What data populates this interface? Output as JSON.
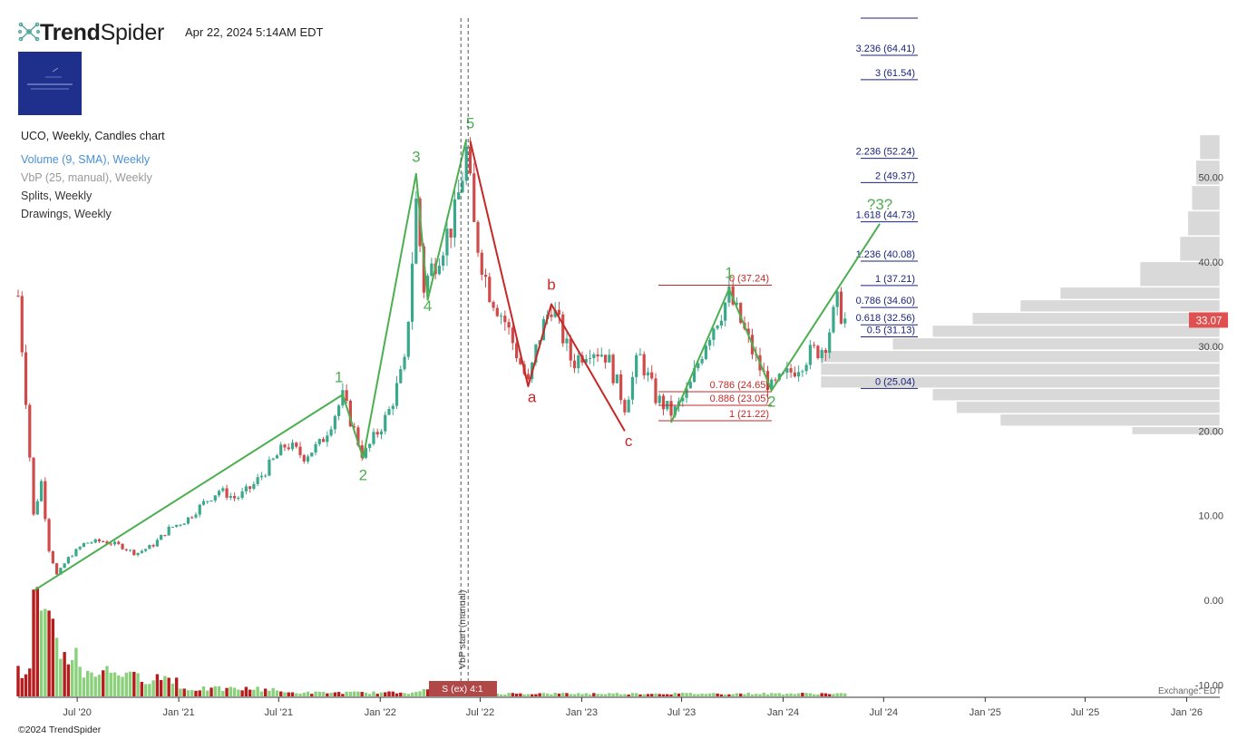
{
  "header": {
    "brand_bold": "Trend",
    "brand_light": "Spider",
    "timestamp": "Apr 22, 2024 5:14AM EDT",
    "copyright": "©2024 TrendSpider",
    "exchange": "Exchange: EDT"
  },
  "legend": {
    "main": "UCO, Weekly, Candles chart",
    "volume": "Volume (9, SMA), Weekly",
    "vbp": "VbP (25, manual), Weekly",
    "splits": "Splits, Weekly",
    "drawings": "Drawings, Weekly"
  },
  "colors": {
    "up": "#3aa88a",
    "down": "#d04a4a",
    "wave_green": "#4caf50",
    "wave_red": "#c62828",
    "vol_up": "#8bd17c",
    "vol_down": "#b71c1c",
    "price_tag": "#e05050",
    "profile": "#d9d9d9"
  },
  "chart_data": {
    "type": "candlestick",
    "ticker": "UCO",
    "timeframe": "Weekly",
    "ylim": [
      -10,
      58
    ],
    "y_ticks": [
      0,
      10,
      20,
      30,
      40,
      50
    ],
    "y_tick_labels": [
      "0.00",
      "10.00",
      "20.00",
      "30.00",
      "40.00",
      "50.00"
    ],
    "y_bottom_label": "-10.00",
    "x_start": "2020-03-16",
    "x_end": "2026-03-02",
    "x_ticks": [
      {
        "date": "2020-07-01",
        "label": "Jul '20"
      },
      {
        "date": "2021-01-01",
        "label": "Jan '21"
      },
      {
        "date": "2021-07-01",
        "label": "Jul '21"
      },
      {
        "date": "2022-01-01",
        "label": "Jan '22"
      },
      {
        "date": "2022-07-01",
        "label": "Jul '22"
      },
      {
        "date": "2023-01-01",
        "label": "Jan '23"
      },
      {
        "date": "2023-07-01",
        "label": "Jul '23"
      },
      {
        "date": "2024-01-01",
        "label": "Jan '24"
      },
      {
        "date": "2024-07-01",
        "label": "Jul '24"
      },
      {
        "date": "2025-01-01",
        "label": "Jan '25"
      },
      {
        "date": "2025-07-01",
        "label": "Jul '25"
      },
      {
        "date": "2026-01-01",
        "label": "Jan '26"
      }
    ],
    "last_price": 33.07,
    "last_price_label": "33.07",
    "price_path": [
      [
        "2020-03-16",
        36
      ],
      [
        "2020-03-30",
        24
      ],
      [
        "2020-04-13",
        10
      ],
      [
        "2020-04-27",
        14
      ],
      [
        "2020-05-11",
        6
      ],
      [
        "2020-05-25",
        3
      ],
      [
        "2020-06-15",
        5
      ],
      [
        "2020-07-15",
        6.8
      ],
      [
        "2020-08-15",
        7
      ],
      [
        "2020-09-15",
        6.5
      ],
      [
        "2020-10-15",
        5.5
      ],
      [
        "2020-11-15",
        6.5
      ],
      [
        "2020-12-15",
        8.5
      ],
      [
        "2021-01-15",
        9.5
      ],
      [
        "2021-02-15",
        11.5
      ],
      [
        "2021-03-15",
        13
      ],
      [
        "2021-04-15",
        12
      ],
      [
        "2021-05-15",
        13.5
      ],
      [
        "2021-06-15",
        16
      ],
      [
        "2021-07-15",
        18.5
      ],
      [
        "2021-08-15",
        17
      ],
      [
        "2021-09-15",
        18.5
      ],
      [
        "2021-10-25",
        24
      ],
      [
        "2021-12-01",
        17
      ],
      [
        "2022-01-15",
        22
      ],
      [
        "2022-02-15",
        28
      ],
      [
        "2022-03-07",
        47
      ],
      [
        "2022-03-21",
        37
      ],
      [
        "2022-04-15",
        41
      ],
      [
        "2022-05-15",
        45
      ],
      [
        "2022-06-06",
        53
      ],
      [
        "2022-06-20",
        44
      ],
      [
        "2022-07-15",
        37
      ],
      [
        "2022-08-15",
        33
      ],
      [
        "2022-09-26",
        25.5
      ],
      [
        "2022-10-15",
        31
      ],
      [
        "2022-11-07",
        35
      ],
      [
        "2022-12-15",
        28
      ],
      [
        "2023-01-15",
        30
      ],
      [
        "2023-02-15",
        29
      ],
      [
        "2023-03-20",
        23
      ],
      [
        "2023-04-15",
        29
      ],
      [
        "2023-05-15",
        24
      ],
      [
        "2023-06-15",
        22
      ],
      [
        "2023-07-15",
        25
      ],
      [
        "2023-08-15",
        31
      ],
      [
        "2023-09-25",
        36
      ],
      [
        "2023-10-15",
        33
      ],
      [
        "2023-11-15",
        28
      ],
      [
        "2023-12-11",
        25
      ],
      [
        "2024-01-15",
        27
      ],
      [
        "2024-02-15",
        29
      ],
      [
        "2024-03-15",
        30
      ],
      [
        "2024-04-08",
        35
      ],
      [
        "2024-04-22",
        33.07
      ]
    ],
    "waves_green": [
      [
        [
          "2020-04-15",
          1.2
        ],
        [
          "2021-10-25",
          24.3
        ],
        [
          "2021-12-01",
          16.8
        ],
        [
          "2022-03-07",
          50.4
        ],
        [
          "2022-03-28",
          35.5
        ],
        [
          "2022-06-06",
          54.5
        ]
      ],
      [
        [
          "2023-06-12",
          21
        ],
        [
          "2023-09-25",
          36.8
        ],
        [
          "2023-12-11",
          24.8
        ],
        [
          "2024-06-24",
          44.5
        ]
      ]
    ],
    "waves_red": [
      [
        [
          "2022-06-13",
          54.3
        ],
        [
          "2022-09-26",
          25.3
        ],
        [
          "2022-11-07",
          35
        ],
        [
          "2023-03-20",
          20
        ]
      ]
    ],
    "wave_labels": [
      {
        "text": "1",
        "date": "2021-10-18",
        "y": 25.8,
        "color": "green"
      },
      {
        "text": "2",
        "date": "2021-12-01",
        "y": 14.2,
        "color": "green"
      },
      {
        "text": "3",
        "date": "2022-03-07",
        "y": 51.8,
        "color": "green"
      },
      {
        "text": "4",
        "date": "2022-03-28",
        "y": 34.2,
        "color": "green"
      },
      {
        "text": "5",
        "date": "2022-06-13",
        "y": 55.8,
        "color": "green"
      },
      {
        "text": "a",
        "date": "2022-10-03",
        "y": 23.4,
        "color": "red"
      },
      {
        "text": "b",
        "date": "2022-11-07",
        "y": 36.7,
        "color": "red"
      },
      {
        "text": "c",
        "date": "2023-03-27",
        "y": 18.2,
        "color": "red"
      },
      {
        "text": "1",
        "date": "2023-09-25",
        "y": 38.1,
        "color": "green"
      },
      {
        "text": "2",
        "date": "2023-12-11",
        "y": 22.9,
        "color": "green"
      },
      {
        "text": "?3?",
        "date": "2024-06-24",
        "y": 46.2,
        "color": "green"
      }
    ],
    "fib_extension": [
      {
        "label": "3.236 (64.41)",
        "price": 64.41
      },
      {
        "label": "3 (61.54)",
        "price": 61.54
      },
      {
        "label": "2.236 (52.24)",
        "price": 52.24
      },
      {
        "label": "2 (49.37)",
        "price": 49.37
      },
      {
        "label": "1.618 (44.73)",
        "price": 44.73
      },
      {
        "label": "1.236 (40.08)",
        "price": 40.08
      },
      {
        "label": "1 (37.21)",
        "price": 37.21
      },
      {
        "label": "0.786 (34.60)",
        "price": 34.6
      },
      {
        "label": "0.618 (32.56)",
        "price": 32.56
      },
      {
        "label": "0.5 (31.13)",
        "price": 31.13
      },
      {
        "label": "0 (25.04)",
        "price": 25.04
      }
    ],
    "fib_retracement": [
      {
        "label": "0 (37.24)",
        "price": 37.24
      },
      {
        "label": "0.786 (24.65)",
        "price": 24.65
      },
      {
        "label": "0.886 (23.05)",
        "price": 23.05
      },
      {
        "label": "1 (21.22)",
        "price": 21.22
      }
    ],
    "vbp_start_label": "VbP start (manual)",
    "vbp_start_date": "2022-06-06",
    "split_date": "2022-05-30",
    "split_label": "S (ex) 4:1",
    "volume_profile": [
      {
        "low": 52,
        "high": 55,
        "w": 0.05
      },
      {
        "low": 49,
        "high": 52,
        "w": 0.06
      },
      {
        "low": 46,
        "high": 49,
        "w": 0.07
      },
      {
        "low": 43,
        "high": 46,
        "w": 0.08
      },
      {
        "low": 40,
        "high": 43,
        "w": 0.1
      },
      {
        "low": 37,
        "high": 40,
        "w": 0.2
      },
      {
        "low": 35.5,
        "high": 37,
        "w": 0.4
      },
      {
        "low": 34,
        "high": 35.5,
        "w": 0.5
      },
      {
        "low": 32.5,
        "high": 34,
        "w": 0.62
      },
      {
        "low": 31,
        "high": 32.5,
        "w": 0.72
      },
      {
        "low": 29.5,
        "high": 31,
        "w": 0.82
      },
      {
        "low": 28,
        "high": 29.5,
        "w": 1
      },
      {
        "low": 26.5,
        "high": 28,
        "w": 1
      },
      {
        "low": 25,
        "high": 26.5,
        "w": 1
      },
      {
        "low": 23.5,
        "high": 25,
        "w": 0.72
      },
      {
        "low": 22,
        "high": 23.5,
        "w": 0.66
      },
      {
        "low": 20.5,
        "high": 22,
        "w": 0.55
      },
      {
        "low": 19.5,
        "high": 20.5,
        "w": 0.22
      }
    ],
    "volume": [
      {
        "start": "2020-03-16",
        "end": "2020-04-06",
        "level": 0.25,
        "dir": "down"
      },
      {
        "start": "2020-04-13",
        "end": "2020-04-20",
        "level": 1.0,
        "dir": "down"
      },
      {
        "start": "2020-04-27",
        "end": "2020-05-25",
        "level": 0.7,
        "dir": "up"
      },
      {
        "start": "2020-06-01",
        "end": "2020-06-29",
        "level": 0.45,
        "dir": "up"
      },
      {
        "start": "2020-07-06",
        "end": "2020-09-28",
        "level": 0.27,
        "dir": "up"
      },
      {
        "start": "2020-10-05",
        "end": "2020-12-28",
        "level": 0.2,
        "dir": "up"
      },
      {
        "start": "2021-01-04",
        "end": "2021-06-28",
        "level": 0.08,
        "dir": "up"
      },
      {
        "start": "2021-07-05",
        "end": "2022-02-21",
        "level": 0.04,
        "dir": "up"
      },
      {
        "start": "2022-02-28",
        "end": "2022-06-27",
        "level": 0.06,
        "dir": "up"
      },
      {
        "start": "2022-07-04",
        "end": "2024-04-22",
        "level": 0.03,
        "dir": "up"
      }
    ]
  }
}
